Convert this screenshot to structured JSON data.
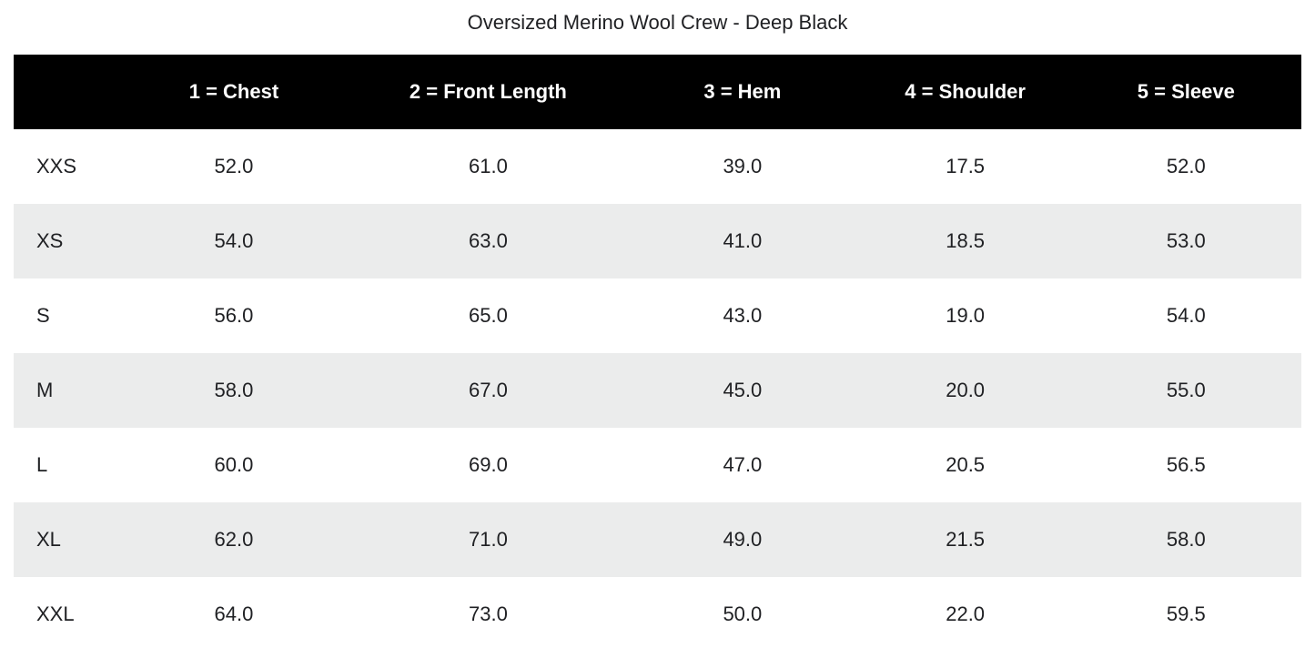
{
  "title": "Oversized Merino Wool Crew - Deep Black",
  "chart_data": {
    "type": "table",
    "title": "Oversized Merino Wool Crew - Deep Black",
    "columns": [
      "",
      "1 = Chest",
      "2 = Front Length",
      "3 = Hem",
      "4 = Shoulder",
      "5 = Sleeve"
    ],
    "rows": [
      {
        "size": "XXS",
        "values": [
          "52.0",
          "61.0",
          "39.0",
          "17.5",
          "52.0"
        ]
      },
      {
        "size": "XS",
        "values": [
          "54.0",
          "63.0",
          "41.0",
          "18.5",
          "53.0"
        ]
      },
      {
        "size": "S",
        "values": [
          "56.0",
          "65.0",
          "43.0",
          "19.0",
          "54.0"
        ]
      },
      {
        "size": "M",
        "values": [
          "58.0",
          "67.0",
          "45.0",
          "20.0",
          "55.0"
        ]
      },
      {
        "size": "L",
        "values": [
          "60.0",
          "69.0",
          "47.0",
          "20.5",
          "56.5"
        ]
      },
      {
        "size": "XL",
        "values": [
          "62.0",
          "71.0",
          "49.0",
          "21.5",
          "58.0"
        ]
      },
      {
        "size": "XXL",
        "values": [
          "64.0",
          "73.0",
          "50.0",
          "22.0",
          "59.5"
        ]
      }
    ],
    "layout": {
      "stripe": "alternating-rows",
      "header_style": "solid-black-bar",
      "grid": "off"
    }
  },
  "colors": {
    "page_bg": "#ffffff",
    "header_bg": "#000000",
    "header_text": "#ffffff",
    "row_stripe_bg": "#ebecec",
    "body_text": "#202124"
  }
}
